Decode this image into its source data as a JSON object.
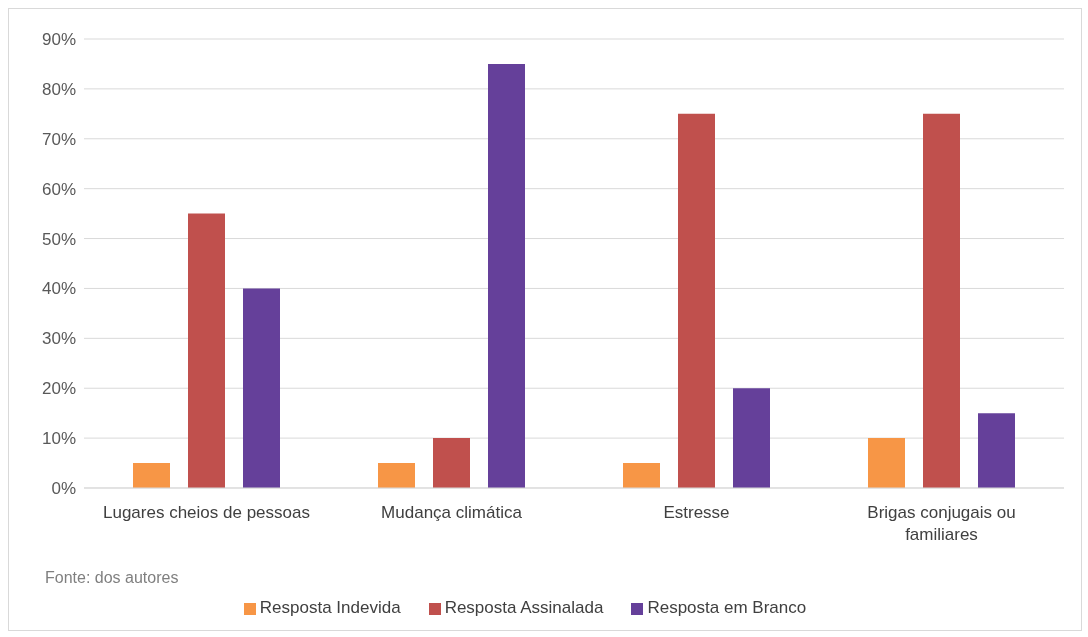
{
  "chart_data": {
    "type": "bar",
    "categories": [
      "Lugares cheios de pessoas",
      "Mudança climática",
      "Estresse",
      "Brigas conjugais ou familiares"
    ],
    "series": [
      {
        "name": "Resposta Indevida",
        "color": "#f79646",
        "values": [
          5,
          5,
          5,
          10
        ]
      },
      {
        "name": "Resposta Assinalada",
        "color": "#c0504d",
        "values": [
          55,
          10,
          75,
          75
        ]
      },
      {
        "name": "Resposta em Branco",
        "color": "#65409a",
        "values": [
          40,
          85,
          20,
          15
        ]
      }
    ],
    "ylim": [
      0,
      90
    ],
    "yticks": [
      {
        "value": 0,
        "label": "0%"
      },
      {
        "value": 10,
        "label": "10%"
      },
      {
        "value": 20,
        "label": "20%"
      },
      {
        "value": 30,
        "label": "30%"
      },
      {
        "value": 40,
        "label": "40%"
      },
      {
        "value": 50,
        "label": "50%"
      },
      {
        "value": 60,
        "label": "60%"
      },
      {
        "value": 70,
        "label": "70%"
      },
      {
        "value": 80,
        "label": "80%"
      },
      {
        "value": 90,
        "label": "90%"
      }
    ],
    "grid": "y",
    "legend": "bottom",
    "annotations": [
      "Fonte: dos autores"
    ]
  }
}
